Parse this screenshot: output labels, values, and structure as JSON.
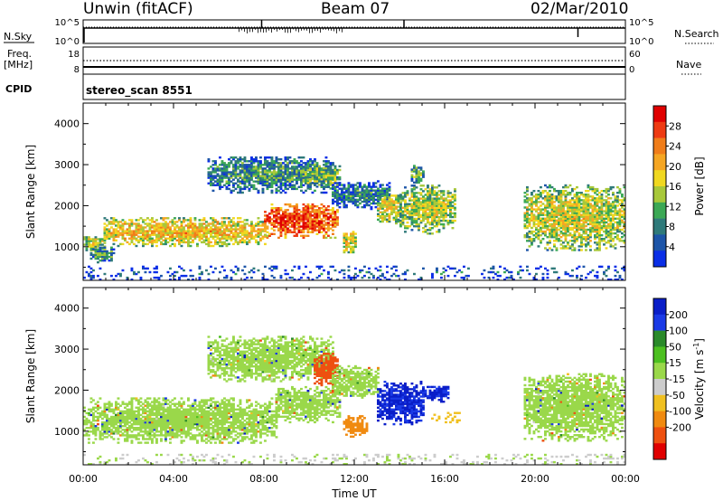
{
  "header": {
    "station": "Unwin (fitACF)",
    "beam": "Beam 07",
    "date": "02/Mar/2010"
  },
  "status_panel": {
    "nsky_label": "N.Sky",
    "nsearch_label": "N.Search",
    "freq_label_top": "Freq.",
    "freq_label_unit": "[MHz]",
    "nave_label": "Nave",
    "cpid_label": "CPID",
    "nsky_ticks": [
      "10^5",
      "10^0"
    ],
    "nsearch_ticks": [
      "10^5",
      "10^0"
    ],
    "freq_ticks": [
      "18",
      "8"
    ],
    "nave_ticks": [
      "60",
      "0"
    ],
    "cpid_text": "stereo_scan 8551"
  },
  "chart_data": [
    {
      "type": "heatmap",
      "panel": "power",
      "ylabel": "Slant Range [km]",
      "xlabel": "",
      "xlim_hours": [
        0,
        24
      ],
      "ylim": [
        180,
        4500
      ],
      "yticks": [
        1000,
        2000,
        3000,
        4000
      ],
      "colorbar": {
        "label": "Power [dB]",
        "ticks": [
          4,
          8,
          12,
          16,
          20,
          24,
          28
        ],
        "range": [
          0,
          32
        ],
        "colors": [
          "#0a2ee6",
          "#1d55a8",
          "#2f7a7a",
          "#3ba855",
          "#a8c83a",
          "#f0d820",
          "#f5a623",
          "#f07d1a",
          "#ee3a12",
          "#e00000"
        ]
      },
      "echo_regions": [
        {
          "t": [
            0,
            0.9
          ],
          "range": [
            850,
            1300
          ],
          "value": 16
        },
        {
          "t": [
            0.3,
            1.4
          ],
          "range": [
            600,
            1000
          ],
          "value": 10
        },
        {
          "t": [
            0.9,
            8.0
          ],
          "range": [
            1000,
            1700
          ],
          "value": 20
        },
        {
          "t": [
            8.0,
            11.2
          ],
          "range": [
            1200,
            2050
          ],
          "value": 27
        },
        {
          "t": [
            5.5,
            11.0
          ],
          "range": [
            2300,
            3200
          ],
          "value": 10
        },
        {
          "t": [
            9.8,
            11.3
          ],
          "range": [
            2400,
            3000
          ],
          "value": 14
        },
        {
          "t": [
            11.0,
            13.5
          ],
          "range": [
            1900,
            2600
          ],
          "value": 8
        },
        {
          "t": [
            11.5,
            12.0
          ],
          "range": [
            800,
            1400
          ],
          "value": 18
        },
        {
          "t": [
            13.0,
            14.0
          ],
          "range": [
            1550,
            2300
          ],
          "value": 18
        },
        {
          "t": [
            14.0,
            16.5
          ],
          "range": [
            1300,
            2500
          ],
          "value": 16
        },
        {
          "t": [
            14.5,
            15.0
          ],
          "range": [
            2500,
            3000
          ],
          "value": 12
        },
        {
          "t": [
            19.5,
            24.0
          ],
          "range": [
            900,
            2500
          ],
          "value": 17
        },
        {
          "t": [
            0,
            24
          ],
          "range": [
            180,
            500
          ],
          "value": 6
        }
      ]
    },
    {
      "type": "heatmap",
      "panel": "velocity",
      "ylabel": "Slant Range [km]",
      "xlabel": "Time UT",
      "xlim_hours": [
        0,
        24
      ],
      "ylim": [
        180,
        4500
      ],
      "yticks": [
        1000,
        2000,
        3000,
        4000
      ],
      "xticks": [
        "00:00",
        "04:00",
        "08:00",
        "12:00",
        "16:00",
        "20:00",
        "00:00"
      ],
      "colorbar": {
        "label": "Velocity [m s",
        "label_sup": "-1",
        "label_end": "]",
        "ticks": [
          200,
          100,
          50,
          15,
          -15,
          -50,
          -100,
          -200
        ],
        "colors": [
          "#0a1ec8",
          "#1a3ae6",
          "#2a8a2a",
          "#4cc020",
          "#9ad84a",
          "#cccccc",
          "#f0c020",
          "#f08a10",
          "#ee5010",
          "#e00000"
        ]
      },
      "echo_regions": [
        {
          "t": [
            0,
            8.5
          ],
          "range": [
            700,
            1800
          ],
          "value": 0
        },
        {
          "t": [
            8.5,
            11.3
          ],
          "range": [
            1200,
            2100
          ],
          "value": 0
        },
        {
          "t": [
            5.5,
            11.0
          ],
          "range": [
            2200,
            3300
          ],
          "value": 0
        },
        {
          "t": [
            10.2,
            11.2
          ],
          "range": [
            2100,
            2900
          ],
          "value": -250
        },
        {
          "t": [
            11.0,
            13.0
          ],
          "range": [
            1800,
            2600
          ],
          "value": 0
        },
        {
          "t": [
            11.5,
            12.5
          ],
          "range": [
            850,
            1350
          ],
          "value": -150
        },
        {
          "t": [
            13.0,
            15.0
          ],
          "range": [
            1150,
            2200
          ],
          "value": 210
        },
        {
          "t": [
            15.0,
            17.0
          ],
          "range": [
            1200,
            1450
          ],
          "value": -80
        },
        {
          "t": [
            15.0,
            16.2
          ],
          "range": [
            1700,
            2100
          ],
          "value": 210
        },
        {
          "t": [
            19.5,
            24.0
          ],
          "range": [
            750,
            2400
          ],
          "value": 0
        },
        {
          "t": [
            0,
            24
          ],
          "range": [
            180,
            450
          ],
          "value": -20
        }
      ]
    }
  ]
}
